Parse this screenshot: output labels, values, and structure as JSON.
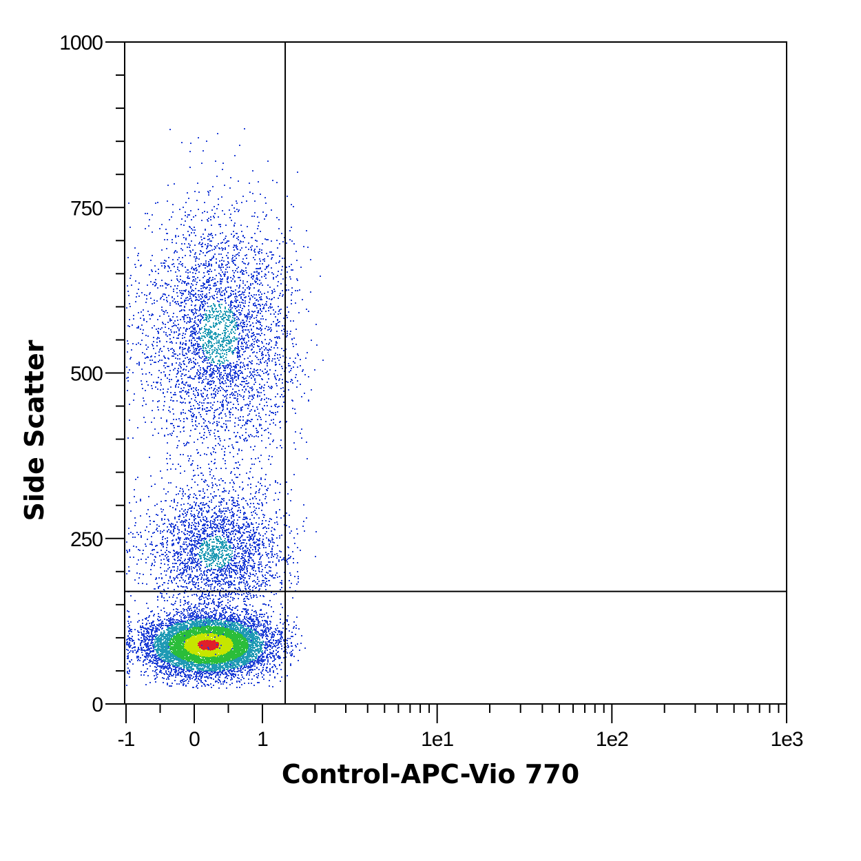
{
  "chart_data": {
    "type": "scatter",
    "subtype": "flow-cytometry density dot plot",
    "title": "",
    "xlabel": "Control-APC-Vio 770",
    "ylabel": "Side Scatter",
    "x_scale": "biexponential (linear near 0, log above)",
    "x_range": [
      -1,
      1000
    ],
    "y_range": [
      0,
      1000
    ],
    "x_ticks": [
      {
        "value": -1,
        "label": "-1"
      },
      {
        "value": 0,
        "label": "0"
      },
      {
        "value": 1,
        "label": "1"
      },
      {
        "value": 10,
        "label": "1e1"
      },
      {
        "value": 100,
        "label": "1e2"
      },
      {
        "value": 1000,
        "label": "1e3"
      }
    ],
    "y_ticks": [
      {
        "value": 0,
        "label": "0"
      },
      {
        "value": 250,
        "label": "250"
      },
      {
        "value": 500,
        "label": "500"
      },
      {
        "value": 750,
        "label": "750"
      },
      {
        "value": 1000,
        "label": "1000"
      }
    ],
    "quadrant_gate": {
      "x": 1.35,
      "y": 170
    },
    "populations": [
      {
        "x_center": 0.2,
        "y_center": 90,
        "x_spread": 0.45,
        "y_spread": 22,
        "events": 9000,
        "density": "high"
      },
      {
        "x_center": 0.3,
        "y_center": 230,
        "x_spread": 0.5,
        "y_spread": 50,
        "events": 2600,
        "density": "medium"
      },
      {
        "x_center": 0.35,
        "y_center": 560,
        "x_spread": 0.55,
        "y_spread": 95,
        "events": 3600,
        "density": "medium"
      }
    ],
    "grid": false,
    "legend": "none",
    "colors": {
      "low": "#1f3fd6",
      "mid_low": "#1f9ab4",
      "mid": "#2bbd3a",
      "high": "#c6e600",
      "peak": "#e0202a"
    }
  }
}
